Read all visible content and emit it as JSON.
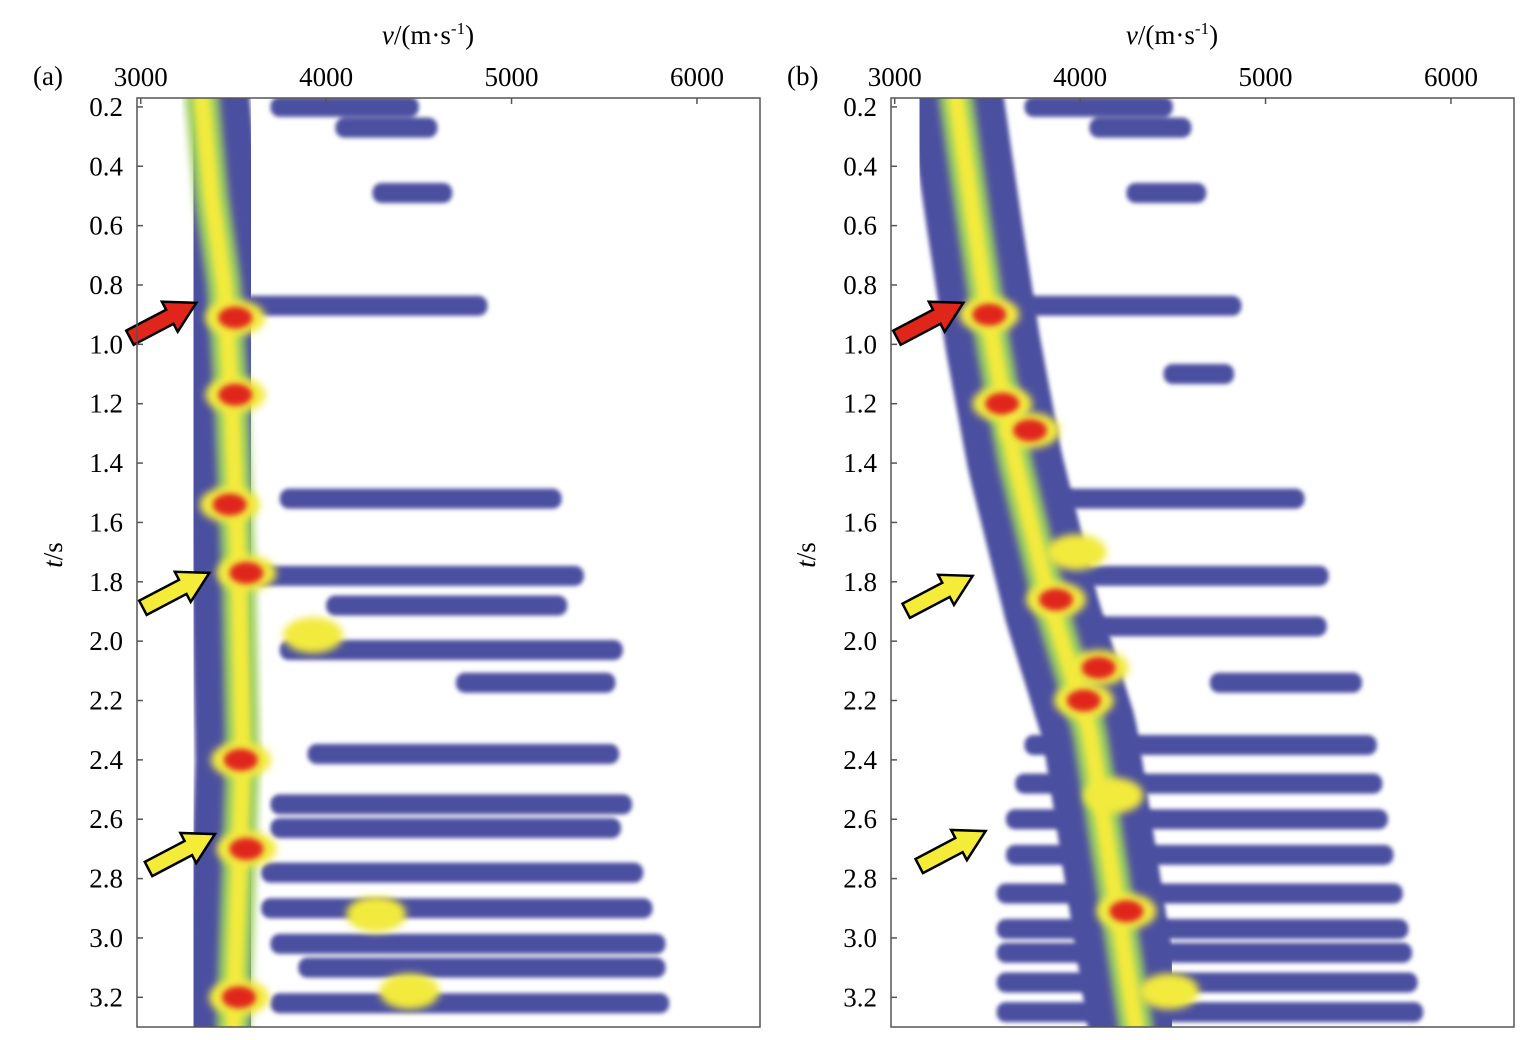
{
  "figure": {
    "colors": {
      "background": "#ffffff",
      "low": "#4b4fa0",
      "mid": "#9fd060",
      "high": "#f2ea3c",
      "peak": "#e0251b",
      "frame": "#555555",
      "arrow_red": "#e0251b",
      "arrow_yellow": "#f5ec3a"
    }
  },
  "chart_data": [
    {
      "type": "heatmap",
      "panel_label": "(a)",
      "xlabel_italic": "v",
      "xlabel_rest": "/(m·s",
      "xlabel_sup": "-1",
      "xlabel_close": ")",
      "ylabel_italic": "t",
      "ylabel_rest": "/s",
      "xlim": [
        2980,
        6340
      ],
      "ylim": [
        0.17,
        3.3
      ],
      "x_ticks": [
        3000,
        4000,
        5000,
        6000
      ],
      "y_ticks": [
        "0.2",
        "0.4",
        "0.6",
        "0.8",
        "1.0",
        "1.2",
        "1.4",
        "1.6",
        "1.8",
        "2.0",
        "2.2",
        "2.4",
        "2.6",
        "2.8",
        "3.0",
        "3.2"
      ],
      "trend": [
        {
          "t": 0.17,
          "v": 3330
        },
        {
          "t": 0.5,
          "v": 3380
        },
        {
          "t": 0.8,
          "v": 3450
        },
        {
          "t": 1.2,
          "v": 3490
        },
        {
          "t": 1.8,
          "v": 3530
        },
        {
          "t": 2.4,
          "v": 3550
        },
        {
          "t": 3.3,
          "v": 3500
        }
      ],
      "peaks": [
        {
          "t": 0.91,
          "v": 3510,
          "level": "peak"
        },
        {
          "t": 1.17,
          "v": 3510,
          "level": "peak"
        },
        {
          "t": 1.54,
          "v": 3480,
          "level": "peak"
        },
        {
          "t": 1.77,
          "v": 3570,
          "level": "peak"
        },
        {
          "t": 2.4,
          "v": 3540,
          "level": "peak"
        },
        {
          "t": 2.7,
          "v": 3570,
          "level": "peak"
        },
        {
          "t": 3.2,
          "v": 3530,
          "level": "peak"
        },
        {
          "t": 1.98,
          "v": 3930,
          "level": "high"
        },
        {
          "t": 2.92,
          "v": 4270,
          "level": "high"
        },
        {
          "t": 3.18,
          "v": 4450,
          "level": "high"
        }
      ],
      "bands": [
        {
          "t": 0.2,
          "v_start": 3700,
          "v_end": 4500
        },
        {
          "t": 0.27,
          "v_start": 4050,
          "v_end": 4600
        },
        {
          "t": 0.49,
          "v_start": 4250,
          "v_end": 4680
        },
        {
          "t": 0.87,
          "v_start": 3550,
          "v_end": 4870
        },
        {
          "t": 1.52,
          "v_start": 3750,
          "v_end": 5270
        },
        {
          "t": 1.78,
          "v_start": 3600,
          "v_end": 5390
        },
        {
          "t": 1.88,
          "v_start": 4000,
          "v_end": 5300
        },
        {
          "t": 2.03,
          "v_start": 3750,
          "v_end": 5600
        },
        {
          "t": 2.14,
          "v_start": 4700,
          "v_end": 5560
        },
        {
          "t": 2.38,
          "v_start": 3900,
          "v_end": 5580
        },
        {
          "t": 2.55,
          "v_start": 3700,
          "v_end": 5650
        },
        {
          "t": 2.63,
          "v_start": 3700,
          "v_end": 5590
        },
        {
          "t": 2.78,
          "v_start": 3650,
          "v_end": 5710
        },
        {
          "t": 2.9,
          "v_start": 3650,
          "v_end": 5760
        },
        {
          "t": 3.02,
          "v_start": 3700,
          "v_end": 5830
        },
        {
          "t": 3.1,
          "v_start": 3850,
          "v_end": 5830
        },
        {
          "t": 3.22,
          "v_start": 3700,
          "v_end": 5850
        }
      ],
      "arrows": [
        {
          "color": "red",
          "t": 0.86,
          "v": 3300
        },
        {
          "color": "yellow",
          "t": 1.77,
          "v": 3370
        },
        {
          "color": "yellow",
          "t": 2.65,
          "v": 3400
        }
      ]
    },
    {
      "type": "heatmap",
      "panel_label": "(b)",
      "xlabel_italic": "v",
      "xlabel_rest": "/(m·s",
      "xlabel_sup": "-1",
      "xlabel_close": ")",
      "ylabel_italic": "t",
      "ylabel_rest": "/s",
      "xlim": [
        2980,
        6340
      ],
      "ylim": [
        0.17,
        3.3
      ],
      "x_ticks": [
        3000,
        4000,
        5000,
        6000
      ],
      "y_ticks": [
        "0.2",
        "0.4",
        "0.6",
        "0.8",
        "1.0",
        "1.2",
        "1.4",
        "1.6",
        "1.8",
        "2.0",
        "2.2",
        "2.4",
        "2.6",
        "2.8",
        "3.0",
        "3.2"
      ],
      "trend": [
        {
          "t": 0.17,
          "v": 3330
        },
        {
          "t": 0.6,
          "v": 3430
        },
        {
          "t": 1.0,
          "v": 3530
        },
        {
          "t": 1.4,
          "v": 3650
        },
        {
          "t": 1.9,
          "v": 3850
        },
        {
          "t": 2.3,
          "v": 4050
        },
        {
          "t": 2.7,
          "v": 4150
        },
        {
          "t": 3.3,
          "v": 4300
        }
      ],
      "peaks": [
        {
          "t": 0.9,
          "v": 3510,
          "level": "peak"
        },
        {
          "t": 1.2,
          "v": 3580,
          "level": "peak"
        },
        {
          "t": 1.29,
          "v": 3730,
          "level": "peak"
        },
        {
          "t": 1.86,
          "v": 3870,
          "level": "peak"
        },
        {
          "t": 2.09,
          "v": 4100,
          "level": "peak"
        },
        {
          "t": 2.2,
          "v": 4020,
          "level": "peak"
        },
        {
          "t": 2.91,
          "v": 4250,
          "level": "peak"
        },
        {
          "t": 2.52,
          "v": 4180,
          "level": "high"
        },
        {
          "t": 3.18,
          "v": 4480,
          "level": "high"
        },
        {
          "t": 1.7,
          "v": 3980,
          "level": "high"
        }
      ],
      "bands": [
        {
          "t": 0.2,
          "v_start": 3700,
          "v_end": 4500
        },
        {
          "t": 0.27,
          "v_start": 4050,
          "v_end": 4600
        },
        {
          "t": 0.49,
          "v_start": 4250,
          "v_end": 4680
        },
        {
          "t": 0.87,
          "v_start": 3550,
          "v_end": 4870
        },
        {
          "t": 1.1,
          "v_start": 4450,
          "v_end": 4830
        },
        {
          "t": 1.52,
          "v_start": 3800,
          "v_end": 5210
        },
        {
          "t": 1.78,
          "v_start": 3650,
          "v_end": 5340
        },
        {
          "t": 1.95,
          "v_start": 3700,
          "v_end": 5330
        },
        {
          "t": 2.14,
          "v_start": 4700,
          "v_end": 5520
        },
        {
          "t": 2.35,
          "v_start": 3700,
          "v_end": 5600
        },
        {
          "t": 2.48,
          "v_start": 3650,
          "v_end": 5630
        },
        {
          "t": 2.6,
          "v_start": 3600,
          "v_end": 5660
        },
        {
          "t": 2.72,
          "v_start": 3600,
          "v_end": 5690
        },
        {
          "t": 2.85,
          "v_start": 3550,
          "v_end": 5740
        },
        {
          "t": 2.97,
          "v_start": 3550,
          "v_end": 5770
        },
        {
          "t": 3.05,
          "v_start": 3550,
          "v_end": 5790
        },
        {
          "t": 3.15,
          "v_start": 3550,
          "v_end": 5820
        },
        {
          "t": 3.25,
          "v_start": 3550,
          "v_end": 5850
        }
      ],
      "arrows": [
        {
          "color": "red",
          "t": 0.86,
          "v": 3370
        },
        {
          "color": "yellow",
          "t": 1.78,
          "v": 3420
        },
        {
          "color": "yellow",
          "t": 2.64,
          "v": 3490
        }
      ]
    }
  ]
}
